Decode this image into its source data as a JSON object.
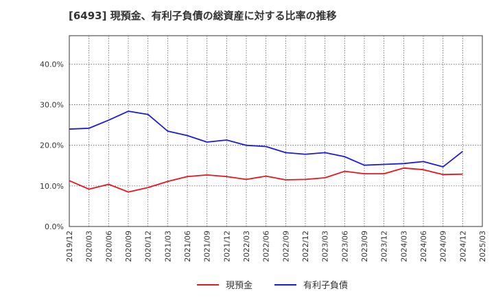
{
  "chart_data": {
    "type": "line",
    "title": "[6493]  現預金、有利子負債の総資産に対する比率の推移",
    "xlabel": "",
    "ylabel": "",
    "ylim": [
      0,
      47
    ],
    "yticks": [
      "0.0%",
      "10.0%",
      "20.0%",
      "30.0%",
      "40.0%"
    ],
    "ytick_values": [
      0,
      10,
      20,
      30,
      40
    ],
    "categories": [
      "2019/12",
      "2020/03",
      "2020/06",
      "2020/09",
      "2020/12",
      "2021/03",
      "2021/06",
      "2021/09",
      "2021/12",
      "2022/03",
      "2022/06",
      "2022/09",
      "2022/12",
      "2023/03",
      "2023/06",
      "2023/09",
      "2023/12",
      "2024/03",
      "2024/06",
      "2024/09",
      "2024/12",
      "2025/03"
    ],
    "series": [
      {
        "name": "現預金",
        "color": "#e8141e",
        "values": [
          11.3,
          9.2,
          10.4,
          8.5,
          9.6,
          11.1,
          12.3,
          12.7,
          12.3,
          11.6,
          12.4,
          11.5,
          11.6,
          12.0,
          13.6,
          13.0,
          13.0,
          14.4,
          14.0,
          12.8,
          12.9,
          null
        ]
      },
      {
        "name": "有利子負債",
        "color": "#1a1adc",
        "values": [
          24.0,
          24.2,
          26.2,
          28.4,
          27.6,
          23.5,
          22.4,
          20.8,
          21.3,
          20.0,
          19.7,
          18.2,
          17.8,
          18.2,
          17.2,
          15.1,
          15.3,
          15.5,
          16.0,
          14.7,
          18.5,
          null
        ]
      }
    ],
    "legend_position": "bottom-center",
    "grid": true
  }
}
